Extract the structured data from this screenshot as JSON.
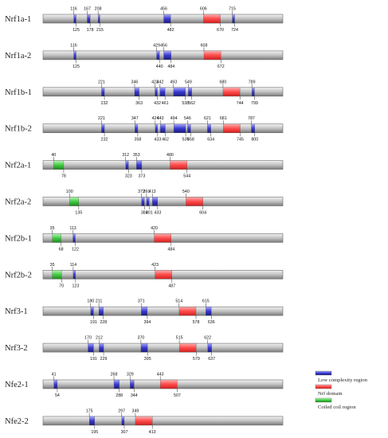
{
  "colors": {
    "low_complexity": "#3f3fd6",
    "nrf_domain": "#ff5555",
    "coiled_coil": "#44cc44",
    "bar": "#c8c8c8"
  },
  "proteins": [
    {
      "name": "Nrf1a-1",
      "domains": [
        {
          "type": "low",
          "start": 116,
          "end": 125
        },
        {
          "type": "low",
          "start": 167,
          "end": 178
        },
        {
          "type": "low",
          "start": 208,
          "end": 215
        },
        {
          "type": "low",
          "start": 456,
          "end": 482
        },
        {
          "type": "nrf",
          "start": 606,
          "end": 670
        },
        {
          "type": "low",
          "start": 715,
          "end": 724
        }
      ]
    },
    {
      "name": "Nrf1a-2",
      "domains": [
        {
          "type": "low",
          "start": 116,
          "end": 125
        },
        {
          "type": "low",
          "start": 429,
          "end": 440
        },
        {
          "type": "low",
          "start": 456,
          "end": 484
        },
        {
          "type": "nrf",
          "start": 608,
          "end": 672
        }
      ]
    },
    {
      "name": "Nrf1b-1",
      "domains": [
        {
          "type": "low",
          "start": 221,
          "end": 232
        },
        {
          "type": "low",
          "start": 346,
          "end": 363
        },
        {
          "type": "low",
          "start": 423,
          "end": 432
        },
        {
          "type": "low",
          "start": 442,
          "end": 461
        },
        {
          "type": "low",
          "start": 493,
          "end": 538
        },
        {
          "type": "low",
          "start": 549,
          "end": 562
        },
        {
          "type": "nrf",
          "start": 680,
          "end": 744
        },
        {
          "type": "low",
          "start": 789,
          "end": 799
        }
      ]
    },
    {
      "name": "Nrf1b-2",
      "domains": [
        {
          "type": "low",
          "start": 221,
          "end": 232
        },
        {
          "type": "low",
          "start": 347,
          "end": 358
        },
        {
          "type": "low",
          "start": 424,
          "end": 433
        },
        {
          "type": "low",
          "start": 443,
          "end": 462
        },
        {
          "type": "low",
          "start": 494,
          "end": 539
        },
        {
          "type": "low",
          "start": 546,
          "end": 558
        },
        {
          "type": "low",
          "start": 621,
          "end": 634
        },
        {
          "type": "nrf",
          "start": 681,
          "end": 745
        },
        {
          "type": "low",
          "start": 787,
          "end": 800
        }
      ]
    },
    {
      "name": "Nrf2a-1",
      "domains": [
        {
          "type": "coil",
          "start": 40,
          "end": 78
        },
        {
          "type": "low",
          "start": 312,
          "end": 323
        },
        {
          "type": "low",
          "start": 353,
          "end": 373
        },
        {
          "type": "nrf",
          "start": 480,
          "end": 544
        }
      ]
    },
    {
      "name": "Nrf2a-2",
      "domains": [
        {
          "type": "coil",
          "start": 100,
          "end": 135
        },
        {
          "type": "low",
          "start": 372,
          "end": 383
        },
        {
          "type": "low",
          "start": 391,
          "end": 401
        },
        {
          "type": "low",
          "start": 413,
          "end": 433
        },
        {
          "type": "nrf",
          "start": 540,
          "end": 604
        }
      ]
    },
    {
      "name": "Nrf2b-1",
      "domains": [
        {
          "type": "coil",
          "start": 35,
          "end": 68
        },
        {
          "type": "low",
          "start": 113,
          "end": 122
        },
        {
          "type": "nrf",
          "start": 420,
          "end": 484
        }
      ]
    },
    {
      "name": "Nrf2b-2",
      "domains": [
        {
          "type": "coil",
          "start": 35,
          "end": 70
        },
        {
          "type": "low",
          "start": 114,
          "end": 123
        },
        {
          "type": "nrf",
          "start": 423,
          "end": 487
        }
      ]
    },
    {
      "name": "Nrf3-1",
      "domains": [
        {
          "type": "low",
          "start": 180,
          "end": 191
        },
        {
          "type": "low",
          "start": 211,
          "end": 228
        },
        {
          "type": "low",
          "start": 371,
          "end": 394
        },
        {
          "type": "nrf",
          "start": 514,
          "end": 578
        },
        {
          "type": "low",
          "start": 615,
          "end": 636
        }
      ]
    },
    {
      "name": "Nrf3-2",
      "domains": [
        {
          "type": "low",
          "start": 170,
          "end": 191
        },
        {
          "type": "low",
          "start": 212,
          "end": 229
        },
        {
          "type": "low",
          "start": 370,
          "end": 395
        },
        {
          "type": "nrf",
          "start": 515,
          "end": 579
        },
        {
          "type": "low",
          "start": 622,
          "end": 637
        }
      ]
    },
    {
      "name": "Nfe2-1",
      "domains": [
        {
          "type": "low",
          "start": 41,
          "end": 54
        },
        {
          "type": "low",
          "start": 268,
          "end": 288
        },
        {
          "type": "low",
          "start": 329,
          "end": 344
        },
        {
          "type": "nrf",
          "start": 443,
          "end": 507
        }
      ]
    },
    {
      "name": "Nfe2-2",
      "domains": [
        {
          "type": "low",
          "start": 175,
          "end": 195
        },
        {
          "type": "low",
          "start": 297,
          "end": 307
        },
        {
          "type": "nrf",
          "start": 349,
          "end": 413
        }
      ]
    }
  ],
  "legend": [
    {
      "type": "low",
      "label": "Low complexity region"
    },
    {
      "type": "nrf",
      "label": "Nrf domain"
    },
    {
      "type": "coil",
      "label": "Coiled coil region"
    }
  ]
}
